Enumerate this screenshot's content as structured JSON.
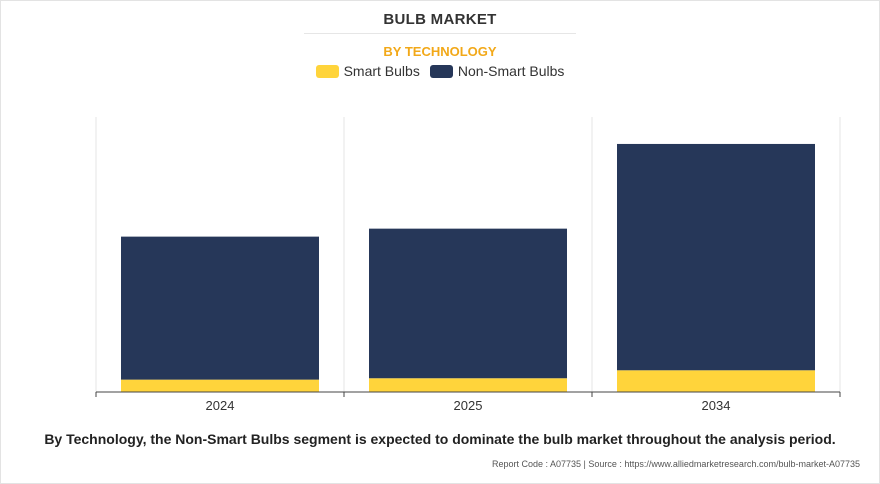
{
  "chart_data": {
    "type": "bar",
    "stacked": true,
    "title": "BULB MARKET",
    "subtitle": "BY TECHNOLOGY",
    "categories": [
      "2024",
      "2025",
      "2034"
    ],
    "series": [
      {
        "name": "Smart Bulbs",
        "color": "#ffd43b",
        "values": [
          4.5,
          5.0,
          7.9
        ]
      },
      {
        "name": "Non-Smart Bulbs",
        "color": "#263759",
        "values": [
          52.0,
          54.4,
          82.3
        ]
      }
    ],
    "ylim": [
      0,
      100
    ],
    "grid": false,
    "legend": "top-center"
  },
  "caption": "By Technology, the Non-Smart Bulbs segment is expected to dominate the bulb market throughout the analysis period.",
  "source": "Report Code : A07735  |  Source : https://www.alliedmarketresearch.com/bulb-market-A07735"
}
